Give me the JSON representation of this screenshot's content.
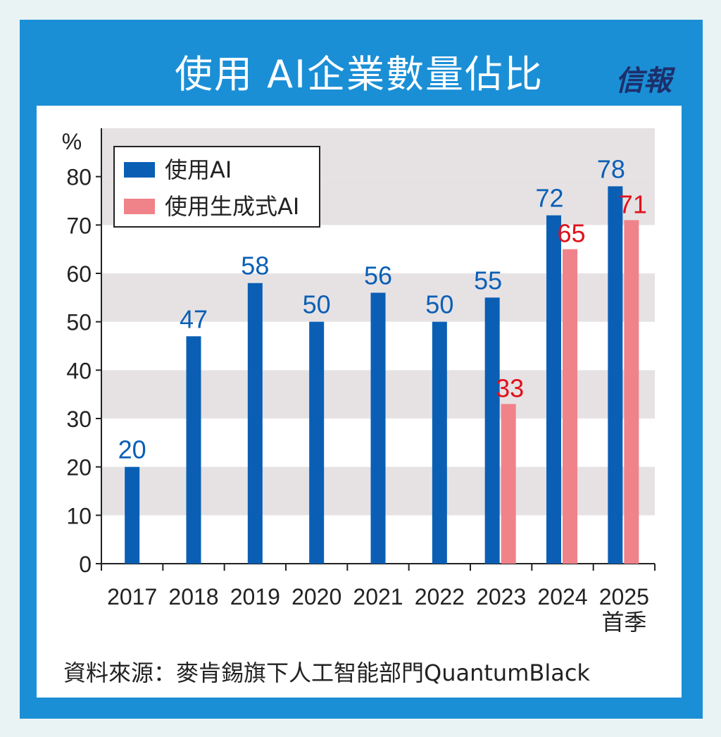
{
  "title": "使用 AI企業數量佔比",
  "logo": "信報",
  "source": "資料來源：麥肯錫旗下人工智能部門QuantumBlack",
  "colors": {
    "frame": "#1b8fd6",
    "series_ai": "#0a5fb5",
    "series_genai": "#f0828a",
    "label_ai": "#0a5fb5",
    "label_genai": "#e0101a",
    "band": "#e6e2e4"
  },
  "chart_data": {
    "type": "bar",
    "ylabel": "%",
    "ylim": [
      0,
      90
    ],
    "yticks": [
      0,
      10,
      20,
      30,
      40,
      50,
      60,
      70,
      80
    ],
    "grid": "alternating horizontal bands",
    "legend_position": "top-left",
    "categories": [
      "2017",
      "2018",
      "2019",
      "2020",
      "2021",
      "2022",
      "2023",
      "2024",
      "2025\n首季"
    ],
    "series": [
      {
        "name": "使用AI",
        "values": [
          20,
          47,
          58,
          50,
          56,
          50,
          55,
          72,
          78
        ]
      },
      {
        "name": "使用生成式AI",
        "values": [
          null,
          null,
          null,
          null,
          null,
          null,
          33,
          65,
          71
        ]
      }
    ]
  }
}
